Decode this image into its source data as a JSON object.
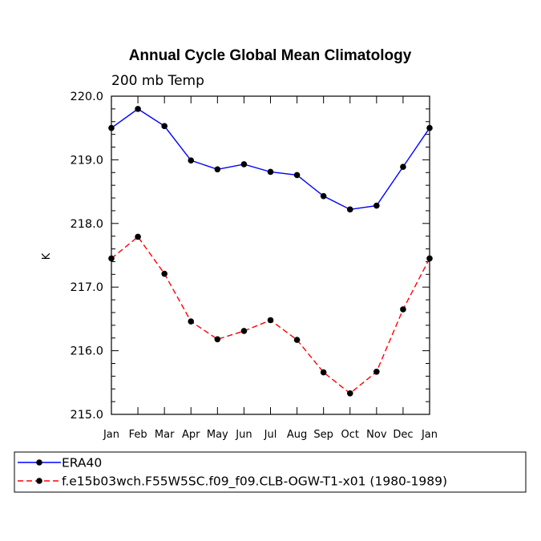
{
  "chart_data": {
    "type": "line",
    "title": "Annual Cycle Global Mean Climatology",
    "subtitle": "200 mb Temp",
    "ylabel": "K",
    "xlabel": "",
    "categories": [
      "Jan",
      "Feb",
      "Mar",
      "Apr",
      "May",
      "Jun",
      "Jul",
      "Aug",
      "Sep",
      "Oct",
      "Nov",
      "Dec",
      "Jan"
    ],
    "ylim": [
      215.0,
      220.0
    ],
    "yticks": [
      215.0,
      216.0,
      217.0,
      218.0,
      219.0,
      220.0
    ],
    "ytick_labels": [
      "215.0",
      "216.0",
      "217.0",
      "218.0",
      "219.0",
      "220.0"
    ],
    "grid": false,
    "legend_position": "bottom",
    "series": [
      {
        "name": "ERA40",
        "color": "#0000ff",
        "dash": "solid",
        "values": [
          219.5,
          219.8,
          219.53,
          218.99,
          218.85,
          218.93,
          218.81,
          218.76,
          218.43,
          218.22,
          218.28,
          218.89,
          219.5
        ]
      },
      {
        "name": "f.e15b03wch.F55W5SC.f09_f09.CLB-OGW-T1-x01 (1980-1989)",
        "color": "#ff0000",
        "dash": "dashed",
        "values": [
          217.45,
          217.79,
          217.21,
          216.46,
          216.18,
          216.31,
          216.48,
          216.17,
          215.66,
          215.33,
          215.67,
          216.65,
          217.45
        ]
      }
    ]
  }
}
